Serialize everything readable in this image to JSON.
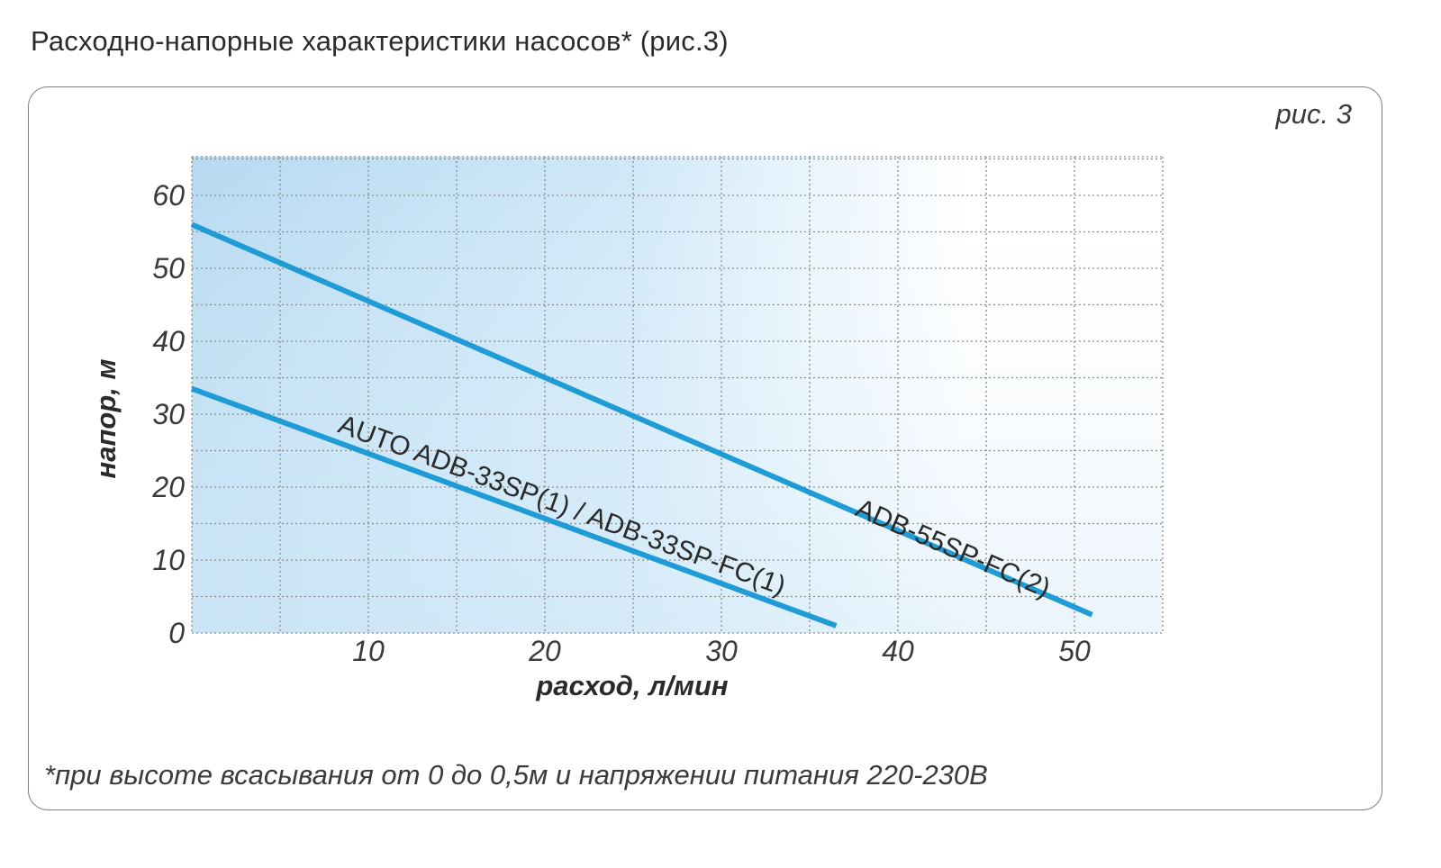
{
  "page": {
    "title": "Расходно-напорные характеристики насосов* (рис.3)",
    "figure_label": "рис. 3",
    "footnote": "*при высоте всасывания от 0 до 0,5м и напряжении питания 220-230В"
  },
  "colors": {
    "line": "#1f9bd5",
    "grid": "#8a8a8a",
    "fill_strong": "#b9dcf3",
    "fill_light": "#ffffff",
    "text": "#3a3a3a"
  },
  "chart_data": {
    "type": "line",
    "title": "",
    "xlabel": "расход, л/мин",
    "ylabel": "напор, м",
    "xlim": [
      0,
      55
    ],
    "ylim": [
      0,
      65
    ],
    "x_ticks": [
      10,
      20,
      30,
      40,
      50
    ],
    "y_ticks": [
      0,
      10,
      20,
      30,
      40,
      50,
      60
    ],
    "grid": true,
    "legend": "none",
    "series": [
      {
        "name": "ADB-55SP-FC(2)",
        "x": [
          0,
          51
        ],
        "y": [
          56,
          2.5
        ]
      },
      {
        "name": "AUTO ADB-33SP(1) / ADB-33SP-FC(1)",
        "x": [
          0,
          36.5
        ],
        "y": [
          33.5,
          1
        ]
      }
    ]
  }
}
